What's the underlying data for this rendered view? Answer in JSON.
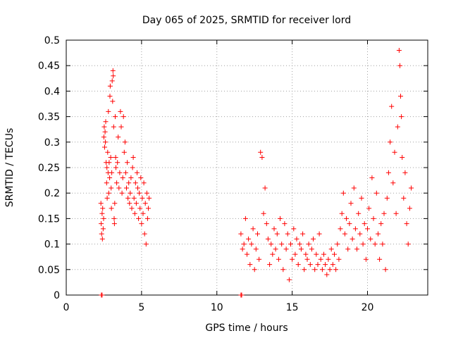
{
  "chart_data": {
    "type": "scatter",
    "title": "Day 065 of 2025, SRMTID for receiver lord",
    "xlabel": "GPS time / hours",
    "ylabel": "SRMTID / TECUs",
    "xlim": [
      0,
      24
    ],
    "ylim": [
      0,
      0.5
    ],
    "xticks": [
      "0",
      "5",
      "10",
      "15",
      "20"
    ],
    "yticks": [
      "0",
      "0.05",
      "0.1",
      "0.15",
      "0.2",
      "0.25",
      "0.3",
      "0.35",
      "0.4",
      "0.45",
      "0.5"
    ],
    "grid": true,
    "marker": "+",
    "color": "#ff0000",
    "series": [
      {
        "name": "SRMTID",
        "points": [
          [
            2.33,
            0.0
          ],
          [
            2.38,
            0.0
          ],
          [
            11.6,
            0.0
          ],
          [
            11.65,
            0.0
          ],
          [
            2.3,
            0.18
          ],
          [
            2.32,
            0.14
          ],
          [
            2.35,
            0.12
          ],
          [
            2.38,
            0.16
          ],
          [
            2.4,
            0.11
          ],
          [
            2.42,
            0.17
          ],
          [
            2.45,
            0.13
          ],
          [
            2.48,
            0.15
          ],
          [
            2.5,
            0.31
          ],
          [
            2.52,
            0.33
          ],
          [
            2.55,
            0.29
          ],
          [
            2.58,
            0.32
          ],
          [
            2.6,
            0.3
          ],
          [
            2.62,
            0.34
          ],
          [
            2.65,
            0.26
          ],
          [
            2.68,
            0.22
          ],
          [
            2.7,
            0.25
          ],
          [
            2.72,
            0.19
          ],
          [
            2.75,
            0.28
          ],
          [
            2.78,
            0.24
          ],
          [
            2.8,
            0.36
          ],
          [
            2.82,
            0.2
          ],
          [
            2.85,
            0.26
          ],
          [
            2.88,
            0.23
          ],
          [
            2.9,
            0.39
          ],
          [
            2.92,
            0.41
          ],
          [
            2.95,
            0.27
          ],
          [
            2.98,
            0.21
          ],
          [
            3.0,
            0.17
          ],
          [
            3.02,
            0.24
          ],
          [
            3.05,
            0.42
          ],
          [
            3.08,
            0.38
          ],
          [
            3.1,
            0.44
          ],
          [
            3.12,
            0.43
          ],
          [
            3.15,
            0.33
          ],
          [
            3.18,
            0.15
          ],
          [
            3.2,
            0.14
          ],
          [
            3.22,
            0.18
          ],
          [
            3.25,
            0.35
          ],
          [
            3.28,
            0.27
          ],
          [
            3.3,
            0.25
          ],
          [
            3.35,
            0.22
          ],
          [
            3.4,
            0.26
          ],
          [
            3.45,
            0.31
          ],
          [
            3.5,
            0.21
          ],
          [
            3.55,
            0.24
          ],
          [
            3.6,
            0.36
          ],
          [
            3.65,
            0.33
          ],
          [
            3.7,
            0.2
          ],
          [
            3.75,
            0.23
          ],
          [
            3.8,
            0.35
          ],
          [
            3.85,
            0.28
          ],
          [
            3.9,
            0.3
          ],
          [
            3.95,
            0.24
          ],
          [
            4.0,
            0.21
          ],
          [
            4.05,
            0.26
          ],
          [
            4.1,
            0.19
          ],
          [
            4.15,
            0.22
          ],
          [
            4.2,
            0.18
          ],
          [
            4.25,
            0.2
          ],
          [
            4.3,
            0.23
          ],
          [
            4.35,
            0.17
          ],
          [
            4.4,
            0.25
          ],
          [
            4.45,
            0.27
          ],
          [
            4.5,
            0.19
          ],
          [
            4.55,
            0.16
          ],
          [
            4.6,
            0.22
          ],
          [
            4.65,
            0.18
          ],
          [
            4.7,
            0.24
          ],
          [
            4.75,
            0.21
          ],
          [
            4.8,
            0.15
          ],
          [
            4.85,
            0.2
          ],
          [
            4.9,
            0.17
          ],
          [
            4.95,
            0.23
          ],
          [
            5.0,
            0.14
          ],
          [
            5.05,
            0.19
          ],
          [
            5.1,
            0.16
          ],
          [
            5.15,
            0.22
          ],
          [
            5.2,
            0.12
          ],
          [
            5.25,
            0.18
          ],
          [
            5.3,
            0.1
          ],
          [
            5.35,
            0.2
          ],
          [
            5.4,
            0.15
          ],
          [
            5.45,
            0.17
          ],
          [
            5.5,
            0.19
          ],
          [
            11.6,
            0.12
          ],
          [
            11.7,
            0.09
          ],
          [
            11.8,
            0.1
          ],
          [
            11.9,
            0.15
          ],
          [
            12.0,
            0.08
          ],
          [
            12.1,
            0.11
          ],
          [
            12.2,
            0.06
          ],
          [
            12.3,
            0.1
          ],
          [
            12.4,
            0.13
          ],
          [
            12.5,
            0.05
          ],
          [
            12.6,
            0.09
          ],
          [
            12.7,
            0.12
          ],
          [
            12.8,
            0.07
          ],
          [
            12.9,
            0.28
          ],
          [
            13.0,
            0.27
          ],
          [
            13.1,
            0.16
          ],
          [
            13.2,
            0.21
          ],
          [
            13.3,
            0.14
          ],
          [
            13.4,
            0.11
          ],
          [
            13.5,
            0.06
          ],
          [
            13.6,
            0.1
          ],
          [
            13.7,
            0.08
          ],
          [
            13.8,
            0.13
          ],
          [
            13.9,
            0.09
          ],
          [
            14.0,
            0.12
          ],
          [
            14.1,
            0.07
          ],
          [
            14.2,
            0.15
          ],
          [
            14.3,
            0.1
          ],
          [
            14.4,
            0.05
          ],
          [
            14.5,
            0.14
          ],
          [
            14.6,
            0.09
          ],
          [
            14.7,
            0.12
          ],
          [
            14.8,
            0.03
          ],
          [
            14.9,
            0.1
          ],
          [
            15.0,
            0.07
          ],
          [
            15.1,
            0.13
          ],
          [
            15.2,
            0.08
          ],
          [
            15.3,
            0.11
          ],
          [
            15.4,
            0.06
          ],
          [
            15.5,
            0.1
          ],
          [
            15.6,
            0.09
          ],
          [
            15.7,
            0.12
          ],
          [
            15.8,
            0.05
          ],
          [
            15.9,
            0.08
          ],
          [
            16.0,
            0.07
          ],
          [
            16.1,
            0.1
          ],
          [
            16.2,
            0.06
          ],
          [
            16.3,
            0.09
          ],
          [
            16.4,
            0.11
          ],
          [
            16.5,
            0.05
          ],
          [
            16.6,
            0.08
          ],
          [
            16.7,
            0.06
          ],
          [
            16.8,
            0.12
          ],
          [
            16.9,
            0.07
          ],
          [
            17.0,
            0.05
          ],
          [
            17.1,
            0.08
          ],
          [
            17.2,
            0.06
          ],
          [
            17.3,
            0.04
          ],
          [
            17.4,
            0.07
          ],
          [
            17.5,
            0.05
          ],
          [
            17.6,
            0.09
          ],
          [
            17.7,
            0.06
          ],
          [
            17.8,
            0.08
          ],
          [
            17.9,
            0.05
          ],
          [
            18.0,
            0.1
          ],
          [
            18.1,
            0.07
          ],
          [
            18.2,
            0.13
          ],
          [
            18.3,
            0.16
          ],
          [
            18.4,
            0.2
          ],
          [
            18.5,
            0.12
          ],
          [
            18.6,
            0.15
          ],
          [
            18.7,
            0.09
          ],
          [
            18.8,
            0.14
          ],
          [
            18.9,
            0.18
          ],
          [
            19.0,
            0.11
          ],
          [
            19.1,
            0.21
          ],
          [
            19.2,
            0.13
          ],
          [
            19.3,
            0.09
          ],
          [
            19.4,
            0.16
          ],
          [
            19.5,
            0.12
          ],
          [
            19.6,
            0.19
          ],
          [
            19.7,
            0.1
          ],
          [
            19.8,
            0.14
          ],
          [
            19.9,
            0.07
          ],
          [
            20.0,
            0.13
          ],
          [
            20.1,
            0.17
          ],
          [
            20.2,
            0.11
          ],
          [
            20.3,
            0.23
          ],
          [
            20.4,
            0.15
          ],
          [
            20.5,
            0.1
          ],
          [
            20.6,
            0.2
          ],
          [
            20.7,
            0.12
          ],
          [
            20.8,
            0.07
          ],
          [
            20.9,
            0.14
          ],
          [
            21.0,
            0.1
          ],
          [
            21.1,
            0.16
          ],
          [
            21.2,
            0.05
          ],
          [
            21.3,
            0.19
          ],
          [
            21.4,
            0.24
          ],
          [
            21.5,
            0.3
          ],
          [
            21.6,
            0.37
          ],
          [
            21.7,
            0.22
          ],
          [
            21.8,
            0.28
          ],
          [
            21.9,
            0.16
          ],
          [
            22.0,
            0.33
          ],
          [
            22.1,
            0.48
          ],
          [
            22.15,
            0.45
          ],
          [
            22.2,
            0.39
          ],
          [
            22.25,
            0.35
          ],
          [
            22.3,
            0.27
          ],
          [
            22.4,
            0.19
          ],
          [
            22.5,
            0.24
          ],
          [
            22.6,
            0.14
          ],
          [
            22.7,
            0.1
          ],
          [
            22.8,
            0.17
          ],
          [
            22.9,
            0.21
          ]
        ]
      }
    ]
  }
}
